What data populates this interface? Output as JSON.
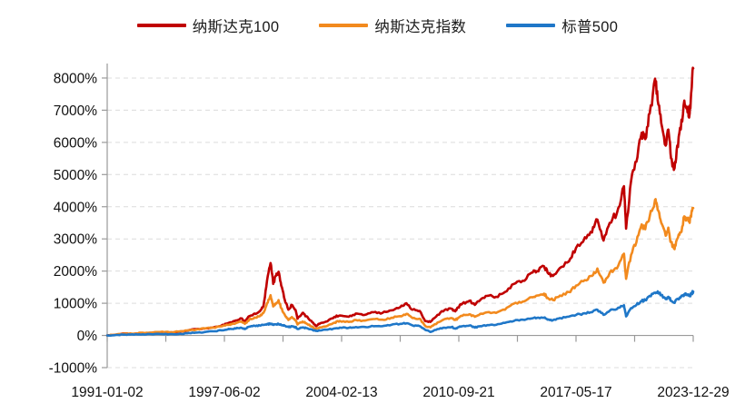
{
  "legend": {
    "items": [
      {
        "label": "纳斯达克100",
        "color": "#C00000"
      },
      {
        "label": "纳斯达克指数",
        "color": "#F28A1E"
      },
      {
        "label": "标普500",
        "color": "#1F77C8"
      }
    ]
  },
  "chart_data": {
    "type": "line",
    "title": "",
    "xlabel": "",
    "ylabel": "",
    "grid": "horizontal-dashed",
    "legend_position": "top-center",
    "x_unit": "decimal_year",
    "xlim": [
      1991.0,
      2024.0
    ],
    "ylim": [
      -1000,
      8450
    ],
    "y_ticks": [
      -1000,
      0,
      1000,
      2000,
      3000,
      4000,
      5000,
      6000,
      7000,
      8000
    ],
    "y_tick_suffix": "%",
    "x_tick_labels": [
      "1991-01-02",
      "1997-06-02",
      "2004-02-13",
      "2010-09-21",
      "2017-05-17",
      "2023-12-29"
    ],
    "x_minor_ticks_between_labels": 1,
    "x": [
      1991.0,
      1991.5,
      1992.0,
      1992.5,
      1993.0,
      1993.5,
      1994.0,
      1994.5,
      1995.0,
      1995.5,
      1996.0,
      1996.5,
      1997.0,
      1997.42,
      1997.8,
      1998.0,
      1998.3,
      1998.55,
      1998.75,
      1999.0,
      1999.3,
      1999.6,
      1999.8,
      2000.0,
      2000.2,
      2000.35,
      2000.5,
      2000.65,
      2000.8,
      2001.0,
      2001.2,
      2001.4,
      2001.6,
      2001.72,
      2002.0,
      2002.2,
      2002.5,
      2002.75,
      2003.0,
      2003.4,
      2003.8,
      2004.1,
      2004.6,
      2005.0,
      2005.5,
      2006.0,
      2006.5,
      2007.0,
      2007.5,
      2007.85,
      2008.2,
      2008.6,
      2008.9,
      2009.2,
      2009.6,
      2010.0,
      2010.4,
      2010.6,
      2010.75,
      2011.0,
      2011.4,
      2011.7,
      2012.0,
      2012.4,
      2012.9,
      2013.4,
      2013.9,
      2014.4,
      2014.9,
      2015.2,
      2015.6,
      2015.8,
      2016.1,
      2016.5,
      2017.0,
      2017.4,
      2017.9,
      2018.3,
      2018.6,
      2018.95,
      2019.3,
      2019.7,
      2020.1,
      2020.22,
      2020.5,
      2020.8,
      2021.1,
      2021.3,
      2021.55,
      2021.85,
      2022.0,
      2022.2,
      2022.45,
      2022.6,
      2022.75,
      2022.95,
      2023.1,
      2023.3,
      2023.5,
      2023.65,
      2023.8,
      2023.9,
      2024.0
    ],
    "series": [
      {
        "name": "纳斯达克100",
        "color": "#C00000",
        "values": [
          0,
          25,
          60,
          50,
          68,
          72,
          95,
          85,
          105,
          145,
          195,
          215,
          255,
          300,
          380,
          400,
          470,
          530,
          420,
          600,
          680,
          750,
          920,
          1700,
          2250,
          1600,
          1850,
          1980,
          1550,
          1100,
          800,
          950,
          800,
          520,
          700,
          600,
          450,
          290,
          380,
          440,
          580,
          620,
          580,
          680,
          640,
          720,
          700,
          780,
          880,
          1000,
          800,
          760,
          450,
          420,
          640,
          790,
          830,
          750,
          870,
          990,
          1080,
          950,
          1100,
          1230,
          1200,
          1350,
          1600,
          1700,
          1950,
          2000,
          2150,
          1950,
          1850,
          2100,
          2300,
          2720,
          3050,
          3200,
          3600,
          2950,
          3500,
          3800,
          4640,
          3320,
          4800,
          5400,
          6300,
          6100,
          6900,
          7980,
          7300,
          6600,
          5900,
          6400,
          5500,
          5200,
          5900,
          6400,
          7300,
          7100,
          6900,
          7600,
          8300
        ]
      },
      {
        "name": "纳斯达克指数",
        "color": "#F28A1E",
        "values": [
          0,
          30,
          57,
          55,
          85,
          90,
          110,
          100,
          120,
          155,
          180,
          220,
          240,
          280,
          330,
          345,
          400,
          430,
          360,
          490,
          560,
          600,
          700,
          1000,
          1250,
          900,
          1000,
          1100,
          850,
          640,
          480,
          570,
          480,
          340,
          430,
          380,
          280,
          200,
          250,
          300,
          400,
          450,
          420,
          480,
          460,
          510,
          490,
          550,
          600,
          670,
          540,
          520,
          300,
          250,
          400,
          510,
          540,
          480,
          535,
          610,
          660,
          580,
          670,
          720,
          700,
          800,
          990,
          1050,
          1190,
          1240,
          1300,
          1170,
          1100,
          1240,
          1350,
          1550,
          1720,
          1850,
          2080,
          1640,
          1950,
          2080,
          2540,
          1760,
          2500,
          2900,
          3450,
          3300,
          3700,
          4220,
          3900,
          3500,
          3100,
          3350,
          2900,
          2680,
          3000,
          3200,
          3700,
          3600,
          3500,
          3800,
          3960
        ]
      },
      {
        "name": "标普500",
        "color": "#1F77C8",
        "values": [
          0,
          15,
          28,
          25,
          35,
          37,
          43,
          38,
          41,
          67,
          89,
          106,
          127,
          160,
          190,
          200,
          235,
          240,
          195,
          275,
          300,
          310,
          330,
          350,
          368,
          330,
          345,
          360,
          320,
          300,
          260,
          285,
          260,
          200,
          250,
          230,
          190,
          140,
          155,
          180,
          220,
          245,
          235,
          260,
          265,
          285,
          290,
          330,
          360,
          378,
          310,
          290,
          175,
          110,
          200,
          240,
          260,
          220,
          250,
          285,
          310,
          245,
          290,
          320,
          330,
          390,
          450,
          490,
          530,
          545,
          550,
          490,
          475,
          540,
          585,
          635,
          690,
          720,
          800,
          640,
          770,
          820,
          938,
          590,
          850,
          950,
          1070,
          1100,
          1230,
          1330,
          1370,
          1250,
          1130,
          1200,
          1080,
          1010,
          1130,
          1180,
          1280,
          1250,
          1220,
          1300,
          1360
        ]
      }
    ]
  }
}
